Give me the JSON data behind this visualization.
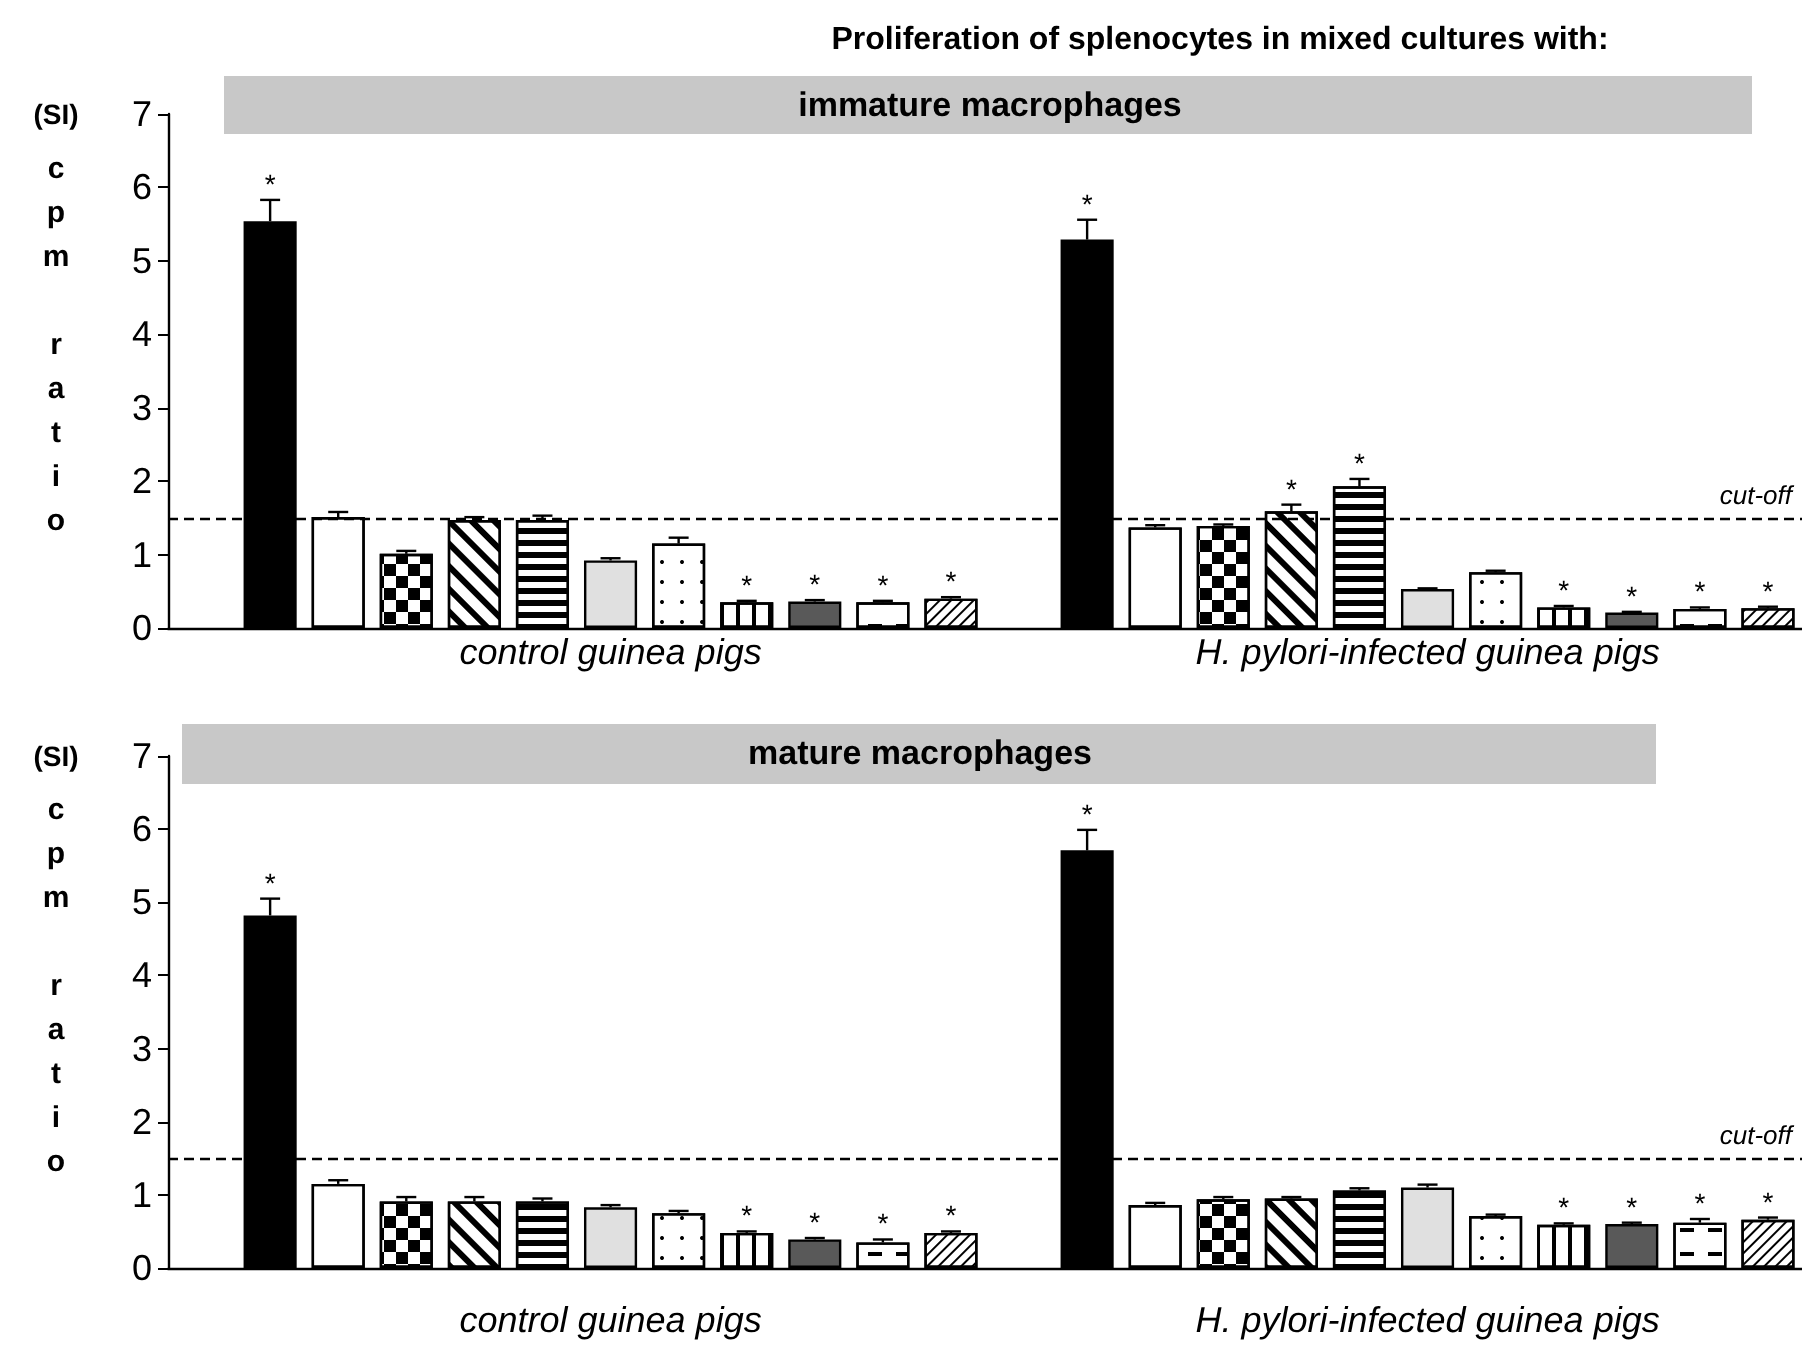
{
  "chart_data": [
    {
      "type": "bar",
      "title": "Proliferation of splenocytes in mixed cultures with:",
      "subtitle": "immature macrophages",
      "ylabel": "cpm ratio",
      "annotations": [
        "(SI)",
        "control guinea pigs",
        "H. pylori-infected guinea pigs"
      ],
      "categories": [
        null,
        null,
        null,
        null,
        null,
        null,
        null,
        null,
        null,
        null,
        null,
        null,
        null,
        null,
        null,
        null,
        null,
        null,
        null,
        null,
        null,
        null,
        null,
        null
      ],
      "values": [
        null,
        5.54,
        1.51,
        1.01,
        1.47,
        1.47,
        0.92,
        1.15,
        0.35,
        0.36,
        0.35,
        0.4,
        null,
        5.29,
        1.37,
        1.39,
        1.59,
        1.93,
        0.53,
        0.76,
        0.28,
        0.21,
        0.26,
        0.27
      ],
      "colors": [
        null,
        "#000000",
        "#ffffff",
        "#ffffff",
        "#ffffff",
        "#ffffff",
        "#e0e0e0",
        "#ffffff",
        "#ffffff",
        "#595959",
        "#ffffff",
        "#ffffff",
        null,
        "#000000",
        "#ffffff",
        "#ffffff",
        "#ffffff",
        "#ffffff",
        "#e0e0e0",
        "#ffffff",
        "#ffffff",
        "#595959",
        "#ffffff",
        "#ffffff"
      ],
      "errors": [
        null,
        [
          5.54,
          5.83
        ],
        [
          1.51,
          1.58
        ],
        [
          1.01,
          1.05
        ],
        [
          1.47,
          1.51
        ],
        [
          1.47,
          1.53
        ],
        [
          0.92,
          0.95
        ],
        [
          1.15,
          1.23
        ],
        [
          0.35,
          0.37
        ],
        [
          0.36,
          0.38
        ],
        [
          0.35,
          0.37
        ],
        [
          0.4,
          0.42
        ],
        null,
        [
          5.29,
          5.56
        ],
        [
          1.37,
          1.4
        ],
        [
          1.39,
          1.41
        ],
        [
          1.59,
          1.68
        ],
        [
          1.93,
          2.03
        ],
        [
          0.53,
          0.54
        ],
        [
          0.76,
          0.78
        ],
        [
          0.28,
          0.3
        ],
        [
          0.21,
          0.22
        ],
        [
          0.26,
          0.28
        ],
        [
          0.27,
          0.29
        ]
      ],
      "value_labels": [
        null,
        "*",
        null,
        null,
        null,
        null,
        null,
        null,
        "*",
        "*",
        "*",
        "*",
        null,
        "*",
        null,
        null,
        "*",
        "*",
        null,
        null,
        "*",
        "*",
        "*",
        "*"
      ],
      "ylim": [
        0,
        7
      ],
      "yticks": [
        0,
        1,
        2,
        3,
        4,
        5,
        6,
        7
      ],
      "ref_lines": [
        {
          "axis": "y",
          "value": 1.5,
          "label": "cut-off",
          "color": "#000000",
          "line_style": "dashed"
        }
      ],
      "tick_labels": "y"
    },
    {
      "type": "bar",
      "subtitle": "mature macrophages",
      "ylabel": "cpm ratio",
      "annotations": [
        "(SI)",
        "control guinea pigs",
        "H. pylori-infected guinea pigs"
      ],
      "categories": [
        null,
        null,
        null,
        null,
        null,
        null,
        null,
        null,
        null,
        null,
        null,
        null,
        null,
        null,
        null,
        null,
        null,
        null,
        null,
        null,
        null,
        null,
        null,
        null
      ],
      "values": [
        null,
        4.82,
        1.15,
        0.91,
        0.91,
        0.91,
        0.83,
        0.75,
        0.48,
        0.39,
        0.35,
        0.48,
        null,
        5.71,
        0.86,
        0.94,
        0.95,
        1.06,
        1.1,
        0.71,
        0.59,
        0.6,
        0.62,
        0.66
      ],
      "colors": [
        null,
        "#000000",
        "#ffffff",
        "#ffffff",
        "#ffffff",
        "#ffffff",
        "#e0e0e0",
        "#ffffff",
        "#ffffff",
        "#595959",
        "#ffffff",
        "#ffffff",
        null,
        "#000000",
        "#ffffff",
        "#ffffff",
        "#ffffff",
        "#ffffff",
        "#e0e0e0",
        "#ffffff",
        "#ffffff",
        "#595959",
        "#ffffff",
        "#ffffff"
      ],
      "errors": [
        null,
        [
          4.82,
          5.05
        ],
        [
          1.15,
          1.2
        ],
        [
          0.91,
          0.97
        ],
        [
          0.91,
          0.97
        ],
        [
          0.91,
          0.95
        ],
        [
          0.83,
          0.86
        ],
        [
          0.75,
          0.78
        ],
        [
          0.48,
          0.5
        ],
        [
          0.39,
          0.41
        ],
        [
          0.35,
          0.39
        ],
        [
          0.48,
          0.5
        ],
        null,
        [
          5.71,
          5.99
        ],
        [
          0.86,
          0.89
        ],
        [
          0.94,
          0.97
        ],
        [
          0.95,
          0.97
        ],
        [
          1.06,
          1.09
        ],
        [
          1.1,
          1.14
        ],
        [
          0.71,
          0.73
        ],
        [
          0.59,
          0.61
        ],
        [
          0.6,
          0.62
        ],
        [
          0.62,
          0.67
        ],
        [
          0.66,
          0.69
        ]
      ],
      "value_labels": [
        null,
        "*",
        null,
        null,
        null,
        null,
        null,
        null,
        "*",
        "*",
        "*",
        "*",
        null,
        "*",
        null,
        null,
        null,
        null,
        null,
        null,
        "*",
        "*",
        "*",
        "*"
      ],
      "ylim": [
        0,
        7
      ],
      "yticks": [
        0,
        1,
        2,
        3,
        4,
        5,
        6,
        7
      ],
      "ref_lines": [
        {
          "axis": "y",
          "value": 1.5,
          "label": "cut-off",
          "color": "#000000",
          "line_style": "dashed"
        }
      ],
      "tick_labels": "y"
    }
  ]
}
